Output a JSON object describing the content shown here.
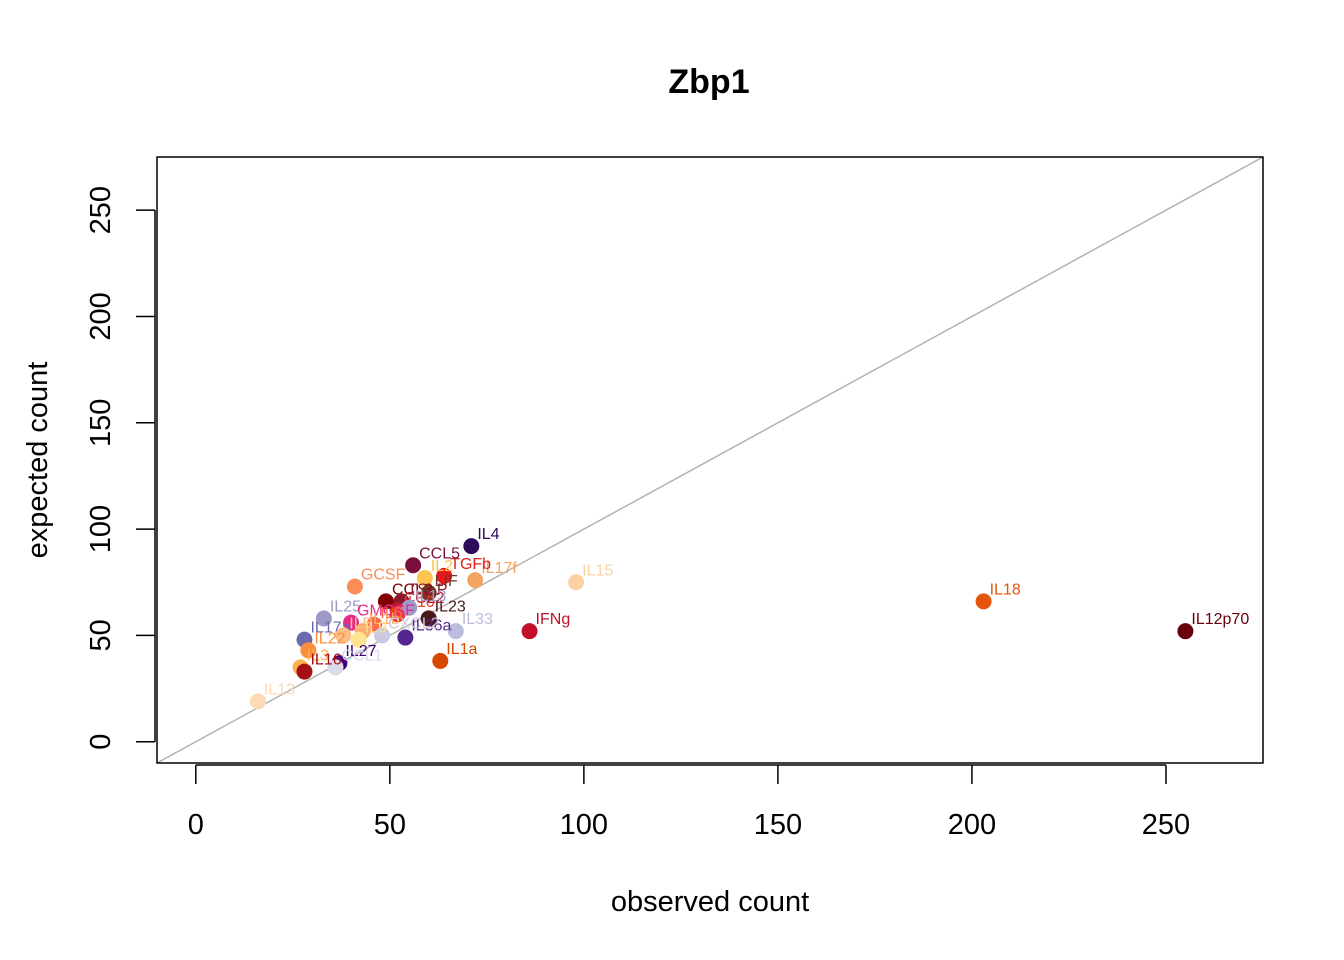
{
  "chart_data": {
    "type": "scatter",
    "title": "Zbp1",
    "xlabel": "observed count",
    "ylabel": "expected count",
    "xlim": [
      -10,
      275
    ],
    "ylim": [
      -10,
      275
    ],
    "xticks": [
      0,
      50,
      100,
      150,
      200,
      250
    ],
    "yticks": [
      0,
      50,
      100,
      150,
      200,
      250
    ],
    "reference_line": "y = x",
    "reference_line_color": "#b3b3b3",
    "grid": false,
    "legend": "none",
    "points": [
      {
        "label": "IL12p70",
        "x": 255,
        "y": 52,
        "color": "#67000d"
      },
      {
        "label": "IL18",
        "x": 203,
        "y": 66,
        "color": "#e6550d"
      },
      {
        "label": "IL15",
        "x": 98,
        "y": 75,
        "color": "#fdd0a2"
      },
      {
        "label": "IFNg",
        "x": 86,
        "y": 52,
        "color": "#c2102b"
      },
      {
        "label": "IL4",
        "x": 71,
        "y": 92,
        "color": "#2d0a5a"
      },
      {
        "label": "IL17f",
        "x": 72,
        "y": 76,
        "color": "#f4a460"
      },
      {
        "label": "IL33",
        "x": 67,
        "y": 52,
        "color": "#bcbddc"
      },
      {
        "label": "IL1a",
        "x": 63,
        "y": 38,
        "color": "#d94801"
      },
      {
        "label": "TGFb",
        "x": 64,
        "y": 78,
        "color": "#e31a1c"
      },
      {
        "label": "IL2",
        "x": 59,
        "y": 77,
        "color": "#fec44f"
      },
      {
        "label": "CCL5",
        "x": 56,
        "y": 83,
        "color": "#7a0f3c"
      },
      {
        "label": "LIF",
        "x": 60,
        "y": 70,
        "color": "#6b3a2a"
      },
      {
        "label": "IL23",
        "x": 60,
        "y": 58,
        "color": "#4a1a1a"
      },
      {
        "label": "IL36a",
        "x": 54,
        "y": 49,
        "color": "#54278f"
      },
      {
        "label": "GCSF",
        "x": 41,
        "y": 73,
        "color": "#fc8d59"
      },
      {
        "label": "CCL3",
        "x": 49,
        "y": 66,
        "color": "#7f0000"
      },
      {
        "label": "TSLP",
        "x": 53,
        "y": 66,
        "color": "#8b1a2b"
      },
      {
        "label": "CCL2",
        "x": 52,
        "y": 62,
        "color": "#b2182b"
      },
      {
        "label": "IL10",
        "x": 52,
        "y": 60,
        "color": "#ef3b2c"
      },
      {
        "label": "IL13",
        "x": 55,
        "y": 63,
        "color": "#9e9ac8"
      },
      {
        "label": "IL25",
        "x": 33,
        "y": 58,
        "color": "#9e9ac8"
      },
      {
        "label": "GMCSF",
        "x": 40,
        "y": 56,
        "color": "#e7298a"
      },
      {
        "label": "IL6",
        "x": 46,
        "y": 55,
        "color": "#fb6a4a"
      },
      {
        "label": "IL1b",
        "x": 43,
        "y": 52,
        "color": "#fdae6b"
      },
      {
        "label": "CXCL2",
        "x": 48,
        "y": 50,
        "color": "#cbc9e2"
      },
      {
        "label": "IL17a",
        "x": 28,
        "y": 48,
        "color": "#6a6aad"
      },
      {
        "label": "IL5",
        "x": 38,
        "y": 50,
        "color": "#fdbe85"
      },
      {
        "label": "IL9",
        "x": 42,
        "y": 48,
        "color": "#fee391"
      },
      {
        "label": "IL22",
        "x": 29,
        "y": 43,
        "color": "#fd8d3c"
      },
      {
        "label": "IL27",
        "x": 37,
        "y": 37,
        "color": "#3f007d"
      },
      {
        "label": "CCL1",
        "x": 36,
        "y": 35,
        "color": "#dadaeb"
      },
      {
        "label": "IL3",
        "x": 27,
        "y": 35,
        "color": "#feb24c"
      },
      {
        "label": "IL16",
        "x": 28,
        "y": 33,
        "color": "#a50f15"
      },
      {
        "label": "IL13",
        "x": 16,
        "y": 19,
        "color": "#fdd9b4"
      }
    ]
  }
}
